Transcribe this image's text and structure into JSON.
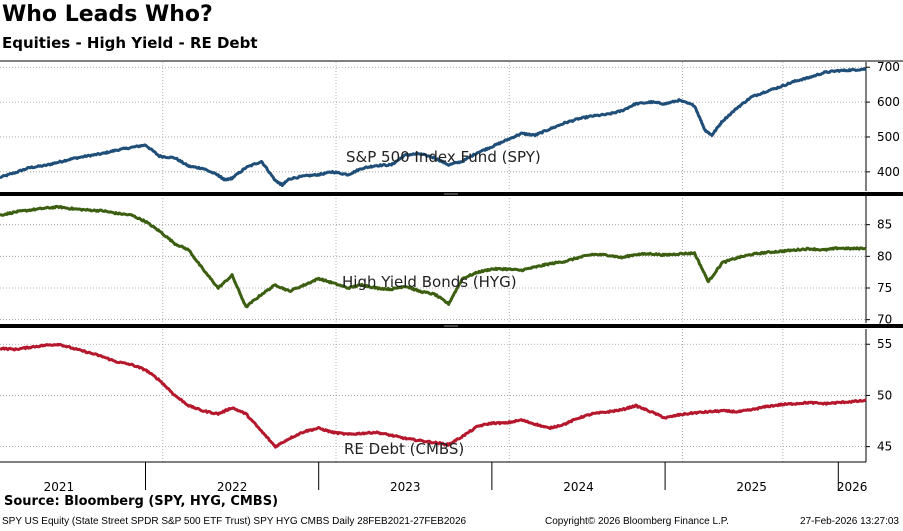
{
  "header": {
    "title": "Who Leads Who?",
    "subtitle": "Equities - High Yield - RE Debt"
  },
  "footer": {
    "source": "Source: Bloomberg (SPY, HYG, CMBS)",
    "tickers": "SPY US Equity (State Street SPDR S&P 500 ETF Trust) SPY HYG CMBS Daily 28FEB2021-27FEB2026",
    "copyright": "Copyright© 2026 Bloomberg Finance L.P.",
    "timestamp": "27-Feb-2026 13:27:03"
  },
  "chart_data": {
    "type": "line",
    "title": "Who Leads Who?",
    "subtitle": "Equities - High Yield - RE Debt",
    "x_range": [
      2021.16,
      2026.16
    ],
    "x_ticks": [
      {
        "label": "2021",
        "center": 2021.5
      },
      {
        "label": "2022",
        "center": 2022.5
      },
      {
        "label": "2023",
        "center": 2023.5
      },
      {
        "label": "2024",
        "center": 2024.5
      },
      {
        "label": "2025",
        "center": 2025.5
      },
      {
        "label": "2026",
        "center": 2026.08
      }
    ],
    "x_dividers": [
      2022.0,
      2023.0,
      2024.0,
      2025.0,
      2026.0
    ],
    "panels": [
      {
        "id": "spy",
        "label": "S&P 500 Index Fund (SPY)",
        "color": "#1f4e79",
        "ylim": [
          345,
          715
        ],
        "yticks": [
          400,
          500,
          600,
          700
        ],
        "x": [
          2021.16,
          2021.25,
          2021.33,
          2021.42,
          2021.5,
          2021.58,
          2021.67,
          2021.75,
          2021.83,
          2021.92,
          2022.0,
          2022.08,
          2022.17,
          2022.25,
          2022.33,
          2022.42,
          2022.46,
          2022.5,
          2022.58,
          2022.67,
          2022.75,
          2022.79,
          2022.83,
          2022.92,
          2023.0,
          2023.08,
          2023.17,
          2023.25,
          2023.33,
          2023.42,
          2023.5,
          2023.58,
          2023.67,
          2023.75,
          2023.83,
          2023.92,
          2024.0,
          2024.08,
          2024.17,
          2024.25,
          2024.33,
          2024.42,
          2024.5,
          2024.58,
          2024.67,
          2024.75,
          2024.83,
          2024.92,
          2025.0,
          2025.08,
          2025.17,
          2025.23,
          2025.27,
          2025.33,
          2025.42,
          2025.5,
          2025.58,
          2025.67,
          2025.75,
          2025.83,
          2025.92,
          2026.0,
          2026.08,
          2026.16
        ],
        "values": [
          384,
          398,
          412,
          418,
          428,
          438,
          446,
          452,
          462,
          470,
          477,
          445,
          440,
          416,
          410,
          390,
          376,
          382,
          412,
          430,
          375,
          362,
          380,
          388,
          392,
          400,
          392,
          410,
          418,
          420,
          448,
          452,
          440,
          420,
          430,
          456,
          472,
          490,
          510,
          505,
          522,
          540,
          552,
          560,
          565,
          575,
          595,
          600,
          595,
          605,
          590,
          520,
          505,
          545,
          585,
          615,
          630,
          645,
          660,
          670,
          685,
          690,
          692,
          695
        ]
      },
      {
        "id": "hyg",
        "label": "High Yield Bonds (HYG)",
        "color": "#3b5e10",
        "ylim": [
          69,
          90
        ],
        "yticks": [
          70,
          75,
          80,
          85
        ],
        "x": [
          2021.16,
          2021.25,
          2021.33,
          2021.42,
          2021.5,
          2021.58,
          2021.67,
          2021.75,
          2021.83,
          2021.92,
          2022.0,
          2022.08,
          2022.17,
          2022.25,
          2022.33,
          2022.42,
          2022.5,
          2022.58,
          2022.67,
          2022.75,
          2022.83,
          2022.92,
          2023.0,
          2023.08,
          2023.17,
          2023.25,
          2023.33,
          2023.42,
          2023.5,
          2023.58,
          2023.67,
          2023.75,
          2023.83,
          2023.92,
          2024.0,
          2024.08,
          2024.17,
          2024.25,
          2024.33,
          2024.42,
          2024.5,
          2024.58,
          2024.67,
          2024.75,
          2024.83,
          2024.92,
          2025.0,
          2025.08,
          2025.17,
          2025.25,
          2025.33,
          2025.42,
          2025.5,
          2025.58,
          2025.67,
          2025.75,
          2025.83,
          2025.92,
          2026.0,
          2026.08,
          2026.16
        ],
        "values": [
          86.5,
          87,
          87.3,
          87.6,
          87.8,
          87.5,
          87.3,
          87.2,
          86.8,
          86.5,
          85.5,
          84,
          82,
          81,
          78,
          75,
          77,
          72,
          74,
          75.5,
          74.5,
          75.5,
          76.5,
          75.8,
          75,
          75.5,
          75,
          74.8,
          75.3,
          74.5,
          74,
          72.5,
          76.5,
          77.5,
          78,
          78,
          77.8,
          78.3,
          78.8,
          79.2,
          79.8,
          80.3,
          80.2,
          79.8,
          80.3,
          80.4,
          80.2,
          80.4,
          80.5,
          76,
          79,
          79.8,
          80.3,
          80.6,
          80.8,
          81,
          81.2,
          81,
          81.3,
          81.2,
          81.3
        ]
      },
      {
        "id": "cmbs",
        "label": "RE Debt (CMBS)",
        "color": "#b5172d",
        "ylim": [
          43.5,
          56
        ],
        "yticks": [
          45,
          50,
          55
        ],
        "x": [
          2021.16,
          2021.25,
          2021.33,
          2021.42,
          2021.5,
          2021.58,
          2021.67,
          2021.75,
          2021.83,
          2021.92,
          2022.0,
          2022.08,
          2022.17,
          2022.25,
          2022.33,
          2022.42,
          2022.5,
          2022.58,
          2022.67,
          2022.75,
          2022.83,
          2022.92,
          2023.0,
          2023.08,
          2023.17,
          2023.25,
          2023.33,
          2023.42,
          2023.5,
          2023.58,
          2023.67,
          2023.75,
          2023.83,
          2023.92,
          2024.0,
          2024.08,
          2024.17,
          2024.25,
          2024.33,
          2024.42,
          2024.5,
          2024.58,
          2024.67,
          2024.75,
          2024.83,
          2024.92,
          2025.0,
          2025.08,
          2025.17,
          2025.25,
          2025.33,
          2025.42,
          2025.5,
          2025.58,
          2025.67,
          2025.75,
          2025.83,
          2025.92,
          2026.0,
          2026.08,
          2026.16
        ],
        "values": [
          54.6,
          54.5,
          54.7,
          54.9,
          55,
          54.6,
          54.2,
          53.8,
          53.3,
          53,
          52.5,
          51.5,
          50,
          49,
          48.5,
          48.2,
          48.8,
          48.2,
          46.5,
          45,
          45.8,
          46.5,
          46.8,
          46.4,
          46.2,
          46.3,
          46.4,
          46.1,
          45.8,
          45.6,
          45.4,
          45.2,
          46,
          47,
          47.3,
          47.3,
          47.6,
          47.2,
          46.8,
          47.2,
          47.8,
          48.2,
          48.4,
          48.6,
          49,
          48.4,
          47.8,
          48.1,
          48.3,
          48.4,
          48.5,
          48.4,
          48.6,
          48.9,
          49.1,
          49.2,
          49.3,
          49.2,
          49.3,
          49.4,
          49.5
        ]
      }
    ]
  }
}
